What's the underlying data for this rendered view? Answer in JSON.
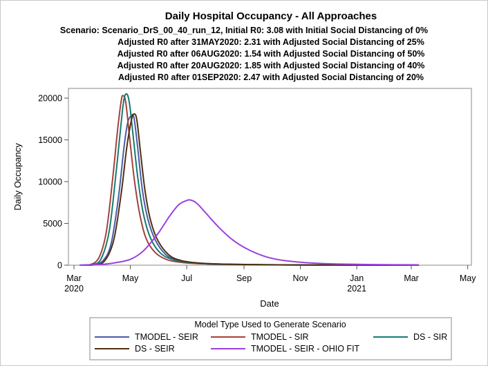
{
  "chart_data": {
    "type": "line",
    "title": "Daily Hospital Occupancy - All Approaches",
    "subtitles": [
      "Scenario: Scenario_DrS_00_40_run_12, Initial R0: 3.08 with Initial Social Distancing of 0%",
      "Adjusted R0 after 31MAY2020: 2.31 with Adjusted Social Distancing of 25%",
      "Adjusted R0 after 06AUG2020: 1.54 with Adjusted Social Distancing of 50%",
      "Adjusted R0 after 20AUG2020: 1.85 with Adjusted Social Distancing of 40%",
      "Adjusted R0 after 01SEP2020: 2.47 with Adjusted Social Distancing of 20%"
    ],
    "xlabel": "Date",
    "ylabel": "Daily Occupancy",
    "xlim": [
      "2020-02-24",
      "2021-05-05"
    ],
    "ylim": [
      0,
      20500
    ],
    "x_ticks": [
      {
        "date": "2020-03-01",
        "label": "Mar",
        "year": "2020"
      },
      {
        "date": "2020-05-01",
        "label": "May",
        "year": ""
      },
      {
        "date": "2020-07-01",
        "label": "Jul",
        "year": ""
      },
      {
        "date": "2020-09-01",
        "label": "Sep",
        "year": ""
      },
      {
        "date": "2020-11-01",
        "label": "Nov",
        "year": ""
      },
      {
        "date": "2021-01-01",
        "label": "Jan",
        "year": "2021"
      },
      {
        "date": "2021-03-01",
        "label": "Mar",
        "year": ""
      },
      {
        "date": "2021-05-01",
        "label": "May",
        "year": ""
      }
    ],
    "y_ticks": [
      0,
      5000,
      10000,
      15000,
      20000
    ],
    "legend": {
      "title": "Model Type Used to Generate Scenario",
      "placement": "bottom",
      "entries": [
        "TMODEL - SEIR",
        "TMODEL - SIR",
        "DS - SIR",
        "DS - SEIR",
        "TMODEL - SEIR - OHIO FIT"
      ]
    },
    "series": [
      {
        "name": "TMODEL - SEIR",
        "color": "#4a5aa6",
        "points": [
          [
            "2020-03-07",
            0
          ],
          [
            "2020-03-20",
            20
          ],
          [
            "2020-04-01",
            500
          ],
          [
            "2020-04-10",
            2500
          ],
          [
            "2020-04-18",
            8000
          ],
          [
            "2020-04-24",
            14000
          ],
          [
            "2020-04-28",
            17000
          ],
          [
            "2020-05-02",
            17900
          ],
          [
            "2020-05-05",
            17600
          ],
          [
            "2020-05-09",
            14000
          ],
          [
            "2020-05-14",
            9000
          ],
          [
            "2020-05-20",
            5500
          ],
          [
            "2020-05-28",
            3000
          ],
          [
            "2020-06-08",
            1300
          ],
          [
            "2020-06-20",
            600
          ],
          [
            "2020-07-05",
            300
          ],
          [
            "2020-07-25",
            150
          ],
          [
            "2020-09-01",
            70
          ],
          [
            "2020-11-01",
            30
          ],
          [
            "2021-01-01",
            15
          ],
          [
            "2021-03-09",
            10
          ]
        ]
      },
      {
        "name": "TMODEL - SIR",
        "color": "#a2413a",
        "points": [
          [
            "2020-03-07",
            0
          ],
          [
            "2020-03-18",
            50
          ],
          [
            "2020-03-28",
            900
          ],
          [
            "2020-04-05",
            4000
          ],
          [
            "2020-04-12",
            10500
          ],
          [
            "2020-04-17",
            16000
          ],
          [
            "2020-04-21",
            19600
          ],
          [
            "2020-04-23",
            20300
          ],
          [
            "2020-04-26",
            19500
          ],
          [
            "2020-04-30",
            15500
          ],
          [
            "2020-05-05",
            10500
          ],
          [
            "2020-05-11",
            6200
          ],
          [
            "2020-05-18",
            3200
          ],
          [
            "2020-05-28",
            1500
          ],
          [
            "2020-06-10",
            650
          ],
          [
            "2020-06-28",
            300
          ],
          [
            "2020-07-20",
            160
          ],
          [
            "2020-09-01",
            60
          ],
          [
            "2020-11-01",
            25
          ],
          [
            "2021-01-01",
            12
          ],
          [
            "2021-03-09",
            8
          ]
        ]
      },
      {
        "name": "DS - SIR",
        "color": "#147a72",
        "points": [
          [
            "2020-03-07",
            0
          ],
          [
            "2020-03-20",
            60
          ],
          [
            "2020-03-30",
            700
          ],
          [
            "2020-04-08",
            4000
          ],
          [
            "2020-04-15",
            10500
          ],
          [
            "2020-04-21",
            17000
          ],
          [
            "2020-04-24",
            19800
          ],
          [
            "2020-04-27",
            20500
          ],
          [
            "2020-04-30",
            19400
          ],
          [
            "2020-05-04",
            15500
          ],
          [
            "2020-05-09",
            10500
          ],
          [
            "2020-05-15",
            6200
          ],
          [
            "2020-05-23",
            3200
          ],
          [
            "2020-06-03",
            1400
          ],
          [
            "2020-06-18",
            600
          ],
          [
            "2020-07-08",
            280
          ],
          [
            "2020-08-01",
            140
          ],
          [
            "2020-09-15",
            60
          ],
          [
            "2020-11-15",
            25
          ],
          [
            "2021-01-15",
            12
          ],
          [
            "2021-03-09",
            8
          ]
        ]
      },
      {
        "name": "DS - SEIR",
        "color": "#4d2f10",
        "points": [
          [
            "2020-03-07",
            0
          ],
          [
            "2020-03-22",
            30
          ],
          [
            "2020-04-03",
            500
          ],
          [
            "2020-04-13",
            3000
          ],
          [
            "2020-04-21",
            8500
          ],
          [
            "2020-04-27",
            14000
          ],
          [
            "2020-05-02",
            17300
          ],
          [
            "2020-05-05",
            18100
          ],
          [
            "2020-05-08",
            17400
          ],
          [
            "2020-05-12",
            13500
          ],
          [
            "2020-05-17",
            8800
          ],
          [
            "2020-05-23",
            5300
          ],
          [
            "2020-05-31",
            2900
          ],
          [
            "2020-06-12",
            1200
          ],
          [
            "2020-06-25",
            550
          ],
          [
            "2020-07-12",
            280
          ],
          [
            "2020-08-05",
            140
          ],
          [
            "2020-09-15",
            60
          ],
          [
            "2020-11-15",
            25
          ],
          [
            "2021-01-15",
            12
          ],
          [
            "2021-03-09",
            8
          ]
        ]
      },
      {
        "name": "TMODEL - SEIR - OHIO FIT",
        "color": "#9a3fe0",
        "points": [
          [
            "2020-03-07",
            0
          ],
          [
            "2020-04-01",
            100
          ],
          [
            "2020-04-15",
            300
          ],
          [
            "2020-05-01",
            700
          ],
          [
            "2020-05-15",
            1700
          ],
          [
            "2020-05-31",
            3800
          ],
          [
            "2020-06-12",
            5800
          ],
          [
            "2020-06-22",
            7200
          ],
          [
            "2020-06-30",
            7700
          ],
          [
            "2020-07-05",
            7800
          ],
          [
            "2020-07-12",
            7400
          ],
          [
            "2020-07-22",
            6200
          ],
          [
            "2020-08-05",
            4500
          ],
          [
            "2020-08-20",
            3000
          ],
          [
            "2020-09-05",
            1900
          ],
          [
            "2020-09-25",
            1000
          ],
          [
            "2020-10-15",
            550
          ],
          [
            "2020-11-15",
            250
          ],
          [
            "2020-12-20",
            120
          ],
          [
            "2021-02-01",
            60
          ],
          [
            "2021-03-09",
            40
          ]
        ]
      }
    ]
  }
}
